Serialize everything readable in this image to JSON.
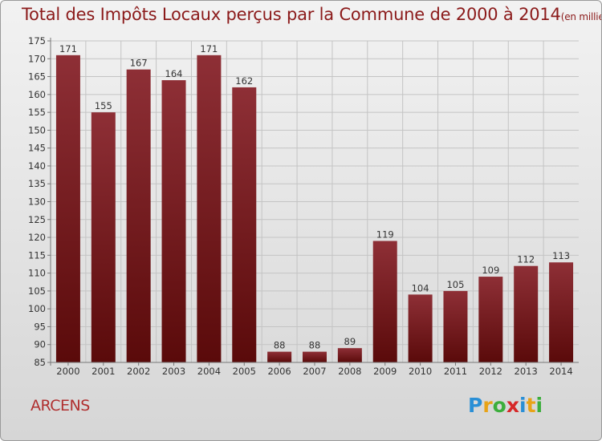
{
  "title": {
    "main": "Total des Impôts Locaux perçus par la Commune de 2000 à 2014",
    "unit": "(en milliers d'€)"
  },
  "commune": "ARCENS",
  "logo": {
    "letters": [
      "P",
      "r",
      "o",
      "x",
      "i",
      "t",
      "i"
    ],
    "colors": [
      "#2a8fd6",
      "#e8a317",
      "#3cae3c",
      "#d62828",
      "#2a8fd6",
      "#e8a317",
      "#3cae3c"
    ]
  },
  "colors": {
    "bar_top": "#8e2f36",
    "bar_bottom": "#5a0a0a",
    "grid": "#c4c4c4",
    "title": "#8b1a1a"
  },
  "chart_data": {
    "type": "bar",
    "title": "Total des Impôts Locaux perçus par la Commune de 2000 à 2014",
    "xlabel": "",
    "ylabel": "",
    "ylim": [
      85,
      175
    ],
    "yticks": [
      85,
      90,
      95,
      100,
      105,
      110,
      115,
      120,
      125,
      130,
      135,
      140,
      145,
      150,
      155,
      160,
      165,
      170,
      175
    ],
    "grid": true,
    "categories": [
      "2000",
      "2001",
      "2002",
      "2003",
      "2004",
      "2005",
      "2006",
      "2007",
      "2008",
      "2009",
      "2010",
      "2011",
      "2012",
      "2013",
      "2014"
    ],
    "values": [
      171,
      155,
      167,
      164,
      171,
      162,
      88,
      88,
      89,
      119,
      104,
      105,
      109,
      112,
      113
    ]
  }
}
